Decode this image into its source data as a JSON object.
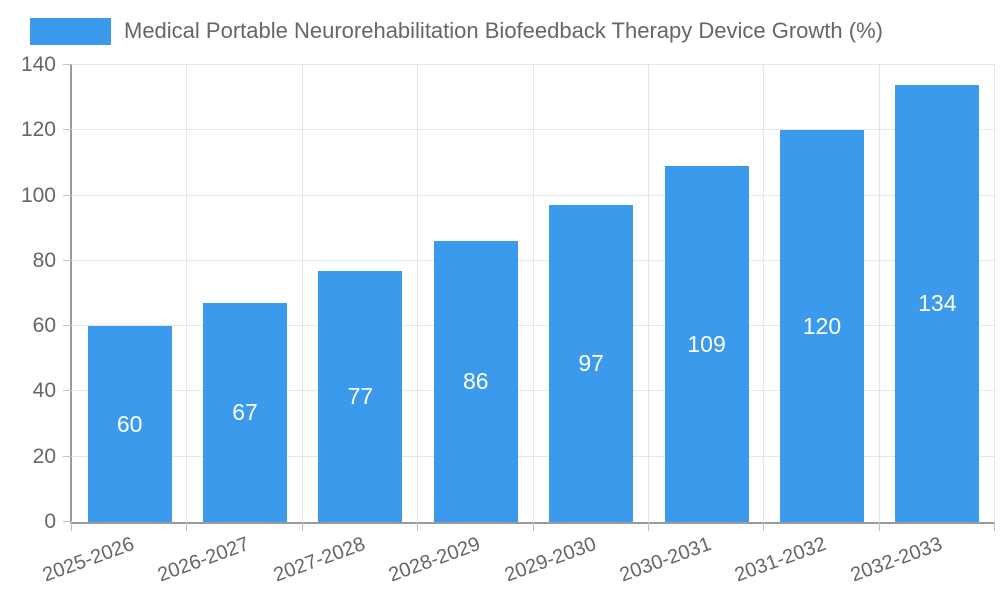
{
  "legend": {
    "label": "Medical Portable Neurorehabilitation Biofeedback Therapy Device Growth (%)"
  },
  "chart_data": {
    "type": "bar",
    "title": "Medical Portable Neurorehabilitation Biofeedback Therapy Device Growth (%)",
    "categories": [
      "2025-2026",
      "2026-2027",
      "2027-2028",
      "2028-2029",
      "2029-2030",
      "2030-2031",
      "2031-2032",
      "2032-2033"
    ],
    "values": [
      60,
      67,
      77,
      86,
      97,
      109,
      120,
      134
    ],
    "xlabel": "",
    "ylabel": "",
    "ylim": [
      0,
      140
    ],
    "yticks": [
      0,
      20,
      40,
      60,
      80,
      100,
      120,
      140
    ],
    "grid": true,
    "legend_position": "top",
    "x_tick_rotation_deg": -20,
    "bar_value_labels_inside": true,
    "colors": {
      "bar": "#3b9aec",
      "bar_value_label": "#ffffff",
      "axis_text": "#666666",
      "grid_line": "#e6e6e6",
      "axis_line": "#9a9a9a",
      "tick_mark": "#c2c2c2",
      "background": "#ffffff"
    }
  }
}
